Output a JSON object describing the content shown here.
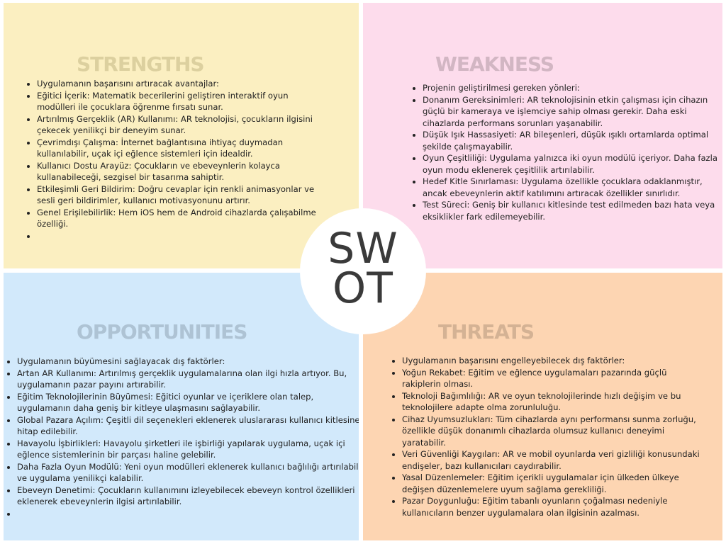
{
  "center": {
    "line1": "SW",
    "line2": "OT"
  },
  "colors": {
    "strengths_bg": "#fbefc1",
    "weakness_bg": "#fddcec",
    "opportunities_bg": "#d2e9fb",
    "threats_bg": "#fdd5b2"
  },
  "strengths": {
    "title": "STRENGTHS",
    "items": [
      "Uygulamanın başarısını artıracak avantajlar:",
      "Eğitici İçerik: Matematik becerilerini geliştiren interaktif oyun modülleri ile çocuklara öğrenme fırsatı sunar.",
      "Artırılmış Gerçeklik (AR) Kullanımı: AR teknolojisi, çocukların ilgisini çekecek yenilikçi bir deneyim sunar.",
      "Çevrimdışı Çalışma: İnternet bağlantısına ihtiyaç duymadan kullanılabilir, uçak içi eğlence sistemleri için idealdir.",
      "Kullanıcı Dostu Arayüz: Çocukların ve ebeveynlerin kolayca kullanabileceği, sezgisel bir tasarıma sahiptir.",
      "Etkileşimli Geri Bildirim: Doğru cevaplar için renkli animasyonlar ve sesli geri bildirimler, kullanıcı motivasyonunu artırır.",
      "Genel Erişilebilirlik: Hem iOS hem de Android cihazlarda çalışabilme özelliği.",
      ""
    ]
  },
  "weakness": {
    "title": "WEAKNESS",
    "items": [
      "Projenin geliştirilmesi gereken yönleri:",
      "Donanım Gereksinimleri: AR teknolojisinin etkin çalışması için cihazın güçlü bir kameraya ve işlemciye sahip olması gerekir. Daha eski cihazlarda performans sorunları yaşanabilir.",
      "Düşük Işık Hassasiyeti: AR bileşenleri, düşük ışıklı ortamlarda optimal şekilde çalışmayabilir.",
      "Oyun Çeşitliliği: Uygulama yalnızca iki oyun modülü içeriyor. Daha fazla oyun modu eklenerek çeşitlilik artırılabilir.",
      "Hedef Kitle Sınırlaması: Uygulama özellikle çocuklara odaklanmıştır, ancak ebeveynlerin aktif katılımını artıracak özellikler sınırlıdır.",
      "Test Süreci: Geniş bir kullanıcı kitlesinde test edilmeden bazı hata veya eksiklikler fark edilemeyebilir."
    ]
  },
  "opportunities": {
    "title": "OPPORTUNITIES",
    "items": [
      "Uygulamanın büyümesini sağlayacak dış faktörler:",
      "Artan AR Kullanımı: Artırılmış gerçeklik uygulamalarına olan ilgi hızla artıyor. Bu, uygulamanın pazar payını artırabilir.",
      "Eğitim Teknolojilerinin Büyümesi: Eğitici oyunlar ve içeriklere olan talep, uygulamanın daha geniş bir kitleye ulaşmasını sağlayabilir.",
      "Global Pazara Açılım: Çeşitli dil seçenekleri eklenerek uluslararası kullanıcı kitlesine hitap edilebilir.",
      "Havayolu İşbirlikleri: Havayolu şirketleri ile işbirliği yapılarak uygulama, uçak içi eğlence sistemlerinin bir parçası haline gelebilir.",
      "Daha Fazla Oyun Modülü: Yeni oyun modülleri eklenerek kullanıcı bağlılığı artırılabilir ve uygulama yenilikçi kalabilir.",
      "Ebeveyn Denetimi: Çocukların kullanımını izleyebilecek ebeveyn kontrol özellikleri eklenerek ebeveynlerin ilgisi artırılabilir.",
      ""
    ]
  },
  "threats": {
    "title": "THREATS",
    "items": [
      "Uygulamanın başarısını engelleyebilecek dış faktörler:",
      "Yoğun Rekabet: Eğitim ve eğlence uygulamaları pazarında güçlü rakiplerin olması.",
      "Teknoloji Bağımlılığı: AR ve oyun teknolojilerinde hızlı değişim ve bu teknolojilere adapte olma zorunluluğu.",
      "Cihaz Uyumsuzlukları: Tüm cihazlarda aynı performansı sunma zorluğu, özellikle düşük donanımlı cihazlarda olumsuz kullanıcı deneyimi yaratabilir.",
      "Veri Güvenliği Kaygıları: AR ve mobil oyunlarda veri gizliliği konusundaki endişeler, bazı kullanıcıları caydırabilir.",
      "Yasal Düzenlemeler: Eğitim içerikli uygulamalar için ülkeden ülkeye değişen düzenlemelere uyum sağlama gerekliliği.",
      "Pazar Doygunluğu: Eğitim tabanlı oyunların çoğalması nedeniyle kullanıcıların benzer uygulamalara olan ilgisinin azalması."
    ]
  }
}
